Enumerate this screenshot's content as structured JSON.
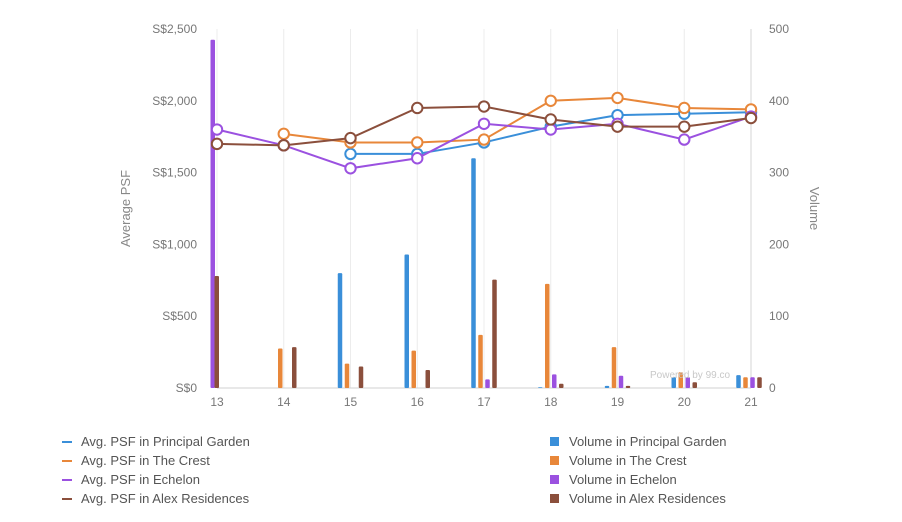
{
  "chart_data": {
    "type": "bar+line",
    "categories": [
      "13",
      "14",
      "15",
      "16",
      "17",
      "18",
      "19",
      "20",
      "21"
    ],
    "y_left": {
      "label": "Average PSF",
      "ticks": [
        "S$0",
        "S$500",
        "S$1,000",
        "S$1,500",
        "S$2,000",
        "S$2,500"
      ],
      "range": [
        0,
        2500
      ]
    },
    "y_right": {
      "label": "Volume",
      "ticks": [
        "0",
        "100",
        "200",
        "300",
        "400",
        "500"
      ],
      "range": [
        0,
        500
      ]
    },
    "line_series": [
      {
        "name": "Avg. PSF in Principal Garden",
        "color": "#3a8fd9",
        "values": [
          null,
          null,
          1630,
          1630,
          1710,
          1820,
          1900,
          1910,
          1920
        ]
      },
      {
        "name": "Avg. PSF in The Crest",
        "color": "#e8873a",
        "values": [
          null,
          1770,
          1710,
          1710,
          1730,
          2000,
          2020,
          1950,
          1940
        ]
      },
      {
        "name": "Avg. PSF in Echelon",
        "color": "#9b51e0",
        "values": [
          1800,
          1690,
          1530,
          1600,
          1840,
          1800,
          1840,
          1730,
          1890
        ]
      },
      {
        "name": "Avg. PSF in Alex Residences",
        "color": "#8b4f3c",
        "values": [
          1700,
          1690,
          1740,
          1950,
          1960,
          1870,
          1820,
          1820,
          1880
        ]
      }
    ],
    "bar_series": [
      {
        "name": "Volume in Principal Garden",
        "color": "#3a8fd9",
        "values": [
          0,
          0,
          160,
          186,
          320,
          1,
          3,
          15,
          18
        ]
      },
      {
        "name": "Volume in The Crest",
        "color": "#e8873a",
        "values": [
          0,
          55,
          34,
          52,
          74,
          145,
          57,
          22,
          15
        ]
      },
      {
        "name": "Volume in Echelon",
        "color": "#9b51e0",
        "values": [
          485,
          0,
          0,
          0,
          12,
          19,
          17,
          15,
          15
        ]
      },
      {
        "name": "Volume in Alex Residences",
        "color": "#8b4f3c",
        "values": [
          156,
          57,
          30,
          25,
          151,
          6,
          3,
          8,
          15
        ]
      }
    ],
    "grid": "vertical",
    "credit": "Powered by 99.co"
  }
}
